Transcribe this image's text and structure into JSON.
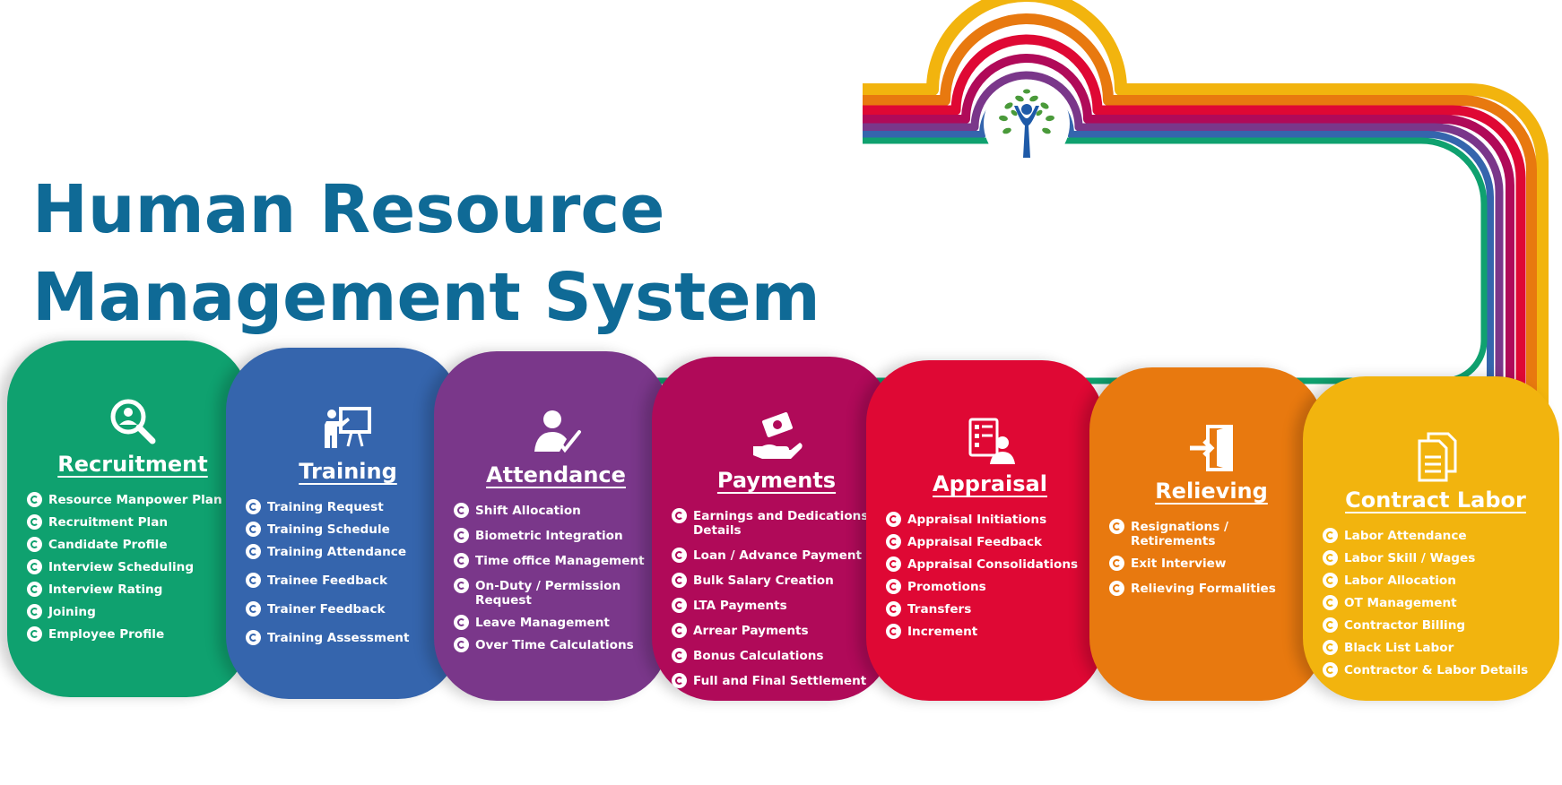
{
  "title": {
    "line1": "Human Resource",
    "line2": "Management System"
  },
  "colors": {
    "title": "#0f6a96",
    "recruitment": "#0fa16f",
    "training": "#3565ad",
    "attendance": "#7a378a",
    "payments": "#b00a59",
    "appraisal": "#df0834",
    "relieving": "#e8790f",
    "contract_labor": "#f2b40e"
  },
  "modules": [
    {
      "name": "Recruitment",
      "icon": "magnifier-person-icon",
      "items": [
        "Resource Manpower Plan",
        "Recruitment Plan",
        "Candidate Profile",
        "Interview Scheduling",
        "Interview Rating",
        "Joining",
        "Employee Profile"
      ]
    },
    {
      "name": "Training",
      "icon": "presentation-board-icon",
      "items": [
        "Training Request",
        "Training Schedule",
        "Training Attendance",
        "Trainee Feedback",
        "Trainer Feedback",
        "Training Assessment"
      ]
    },
    {
      "name": "Attendance",
      "icon": "person-check-icon",
      "items": [
        "Shift Allocation",
        "Biometric Integration",
        "Time office Management",
        "On-Duty / Permission Request",
        "Leave Management",
        "Over Time Calculations"
      ]
    },
    {
      "name": "Payments",
      "icon": "hand-money-icon",
      "items": [
        "Earnings and Dedications Details",
        "Loan / Advance Payment",
        "Bulk Salary Creation",
        "LTA Payments",
        "Arrear Payments",
        "Bonus Calculations",
        "Full and Final Settlement"
      ]
    },
    {
      "name": "Appraisal",
      "icon": "checklist-person-icon",
      "items": [
        "Appraisal Initiations",
        "Appraisal Feedback",
        "Appraisal Consolidations",
        "Promotions",
        "Transfers",
        "Increment"
      ]
    },
    {
      "name": "Relieving",
      "icon": "exit-door-icon",
      "items": [
        "Resignations / Retirements",
        "Exit Interview",
        "Relieving Formalities"
      ]
    },
    {
      "name": "Contract Labor",
      "icon": "documents-icon",
      "items": [
        "Labor Attendance",
        "Labor Skill / Wages",
        "Labor Allocation",
        "OT Management",
        "Contractor Billing",
        "Black List Labor",
        "Contractor & Labor Details"
      ]
    }
  ]
}
